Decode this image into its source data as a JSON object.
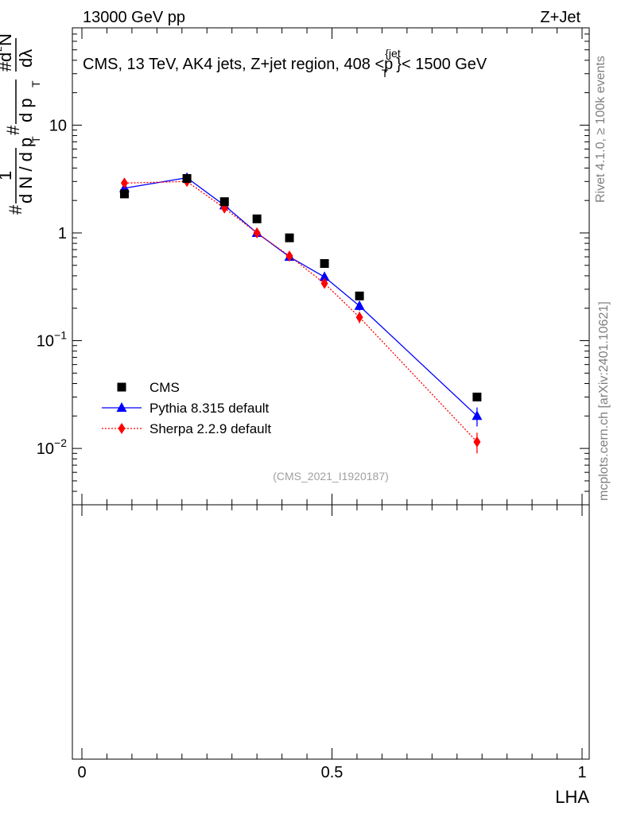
{
  "header": {
    "energy_label": "13000 GeV pp",
    "process_label": "Z+Jet"
  },
  "side": {
    "rivet_label": "Rivet 4.1.0, ≥ 100k events",
    "source_label": "mcplots.cern.ch [arXiv:2401.10621]"
  },
  "yaxis": {
    "numerator_hash": "#",
    "one": "1",
    "dN_label": "d N / d p",
    "T": "T",
    "hash2": "#",
    "dp_label": "d p",
    "T2": "T",
    "dlambda": "dλ",
    "hash3": "#",
    "d2N": "d",
    "sup2": "2",
    "N": "N"
  },
  "chart_data": {
    "type": "line",
    "title_parts": {
      "prefix": "CMS, 13 TeV, AK4 jets, Z+jet region, 408 <p",
      "sup": "{jet",
      "sub": "T",
      "suffix": "}< 1500 GeV"
    },
    "watermark": "(CMS_2021_I1920187)",
    "xlabel": "LHA",
    "xlim": [
      0,
      1
    ],
    "ylim": [
      0.003,
      80
    ],
    "yscale": "log",
    "x_ticks": [
      {
        "value": 0,
        "label": "0"
      },
      {
        "value": 0.5,
        "label": "0.5"
      },
      {
        "value": 1,
        "label": "1"
      }
    ],
    "y_ticks": [
      {
        "value": 0.01,
        "base": "10",
        "exp": "−2"
      },
      {
        "value": 0.1,
        "base": "10",
        "exp": "−1"
      },
      {
        "value": 1,
        "base": "1",
        "exp": ""
      },
      {
        "value": 10,
        "base": "10",
        "exp": ""
      }
    ],
    "series": [
      {
        "name": "CMS",
        "color": "#000000",
        "marker": "square",
        "line": "none",
        "x": [
          0.085,
          0.21,
          0.285,
          0.35,
          0.415,
          0.485,
          0.555,
          0.79
        ],
        "y": [
          2.3,
          3.2,
          1.95,
          1.35,
          0.9,
          0.52,
          0.26,
          0.03
        ],
        "err": [
          0,
          0,
          0,
          0,
          0,
          0,
          0,
          0
        ]
      },
      {
        "name": "Pythia 8.315 default",
        "color": "#0000ff",
        "marker": "triangle",
        "line": "solid",
        "x": [
          0.085,
          0.21,
          0.285,
          0.35,
          0.415,
          0.485,
          0.555,
          0.79
        ],
        "y": [
          2.6,
          3.25,
          1.8,
          1.0,
          0.6,
          0.39,
          0.21,
          0.02
        ],
        "err": [
          0.12,
          0.12,
          0.08,
          0.05,
          0.03,
          0.03,
          0.02,
          0.004
        ]
      },
      {
        "name": "Sherpa 2.2.9 default",
        "color": "#ff0000",
        "marker": "diamond",
        "line": "dotted",
        "x": [
          0.085,
          0.21,
          0.285,
          0.35,
          0.415,
          0.485,
          0.555,
          0.79
        ],
        "y": [
          2.9,
          3.0,
          1.7,
          1.0,
          0.61,
          0.34,
          0.165,
          0.0115
        ],
        "err": [
          0.12,
          0.12,
          0.08,
          0.05,
          0.03,
          0.03,
          0.02,
          0.0025
        ]
      }
    ]
  }
}
